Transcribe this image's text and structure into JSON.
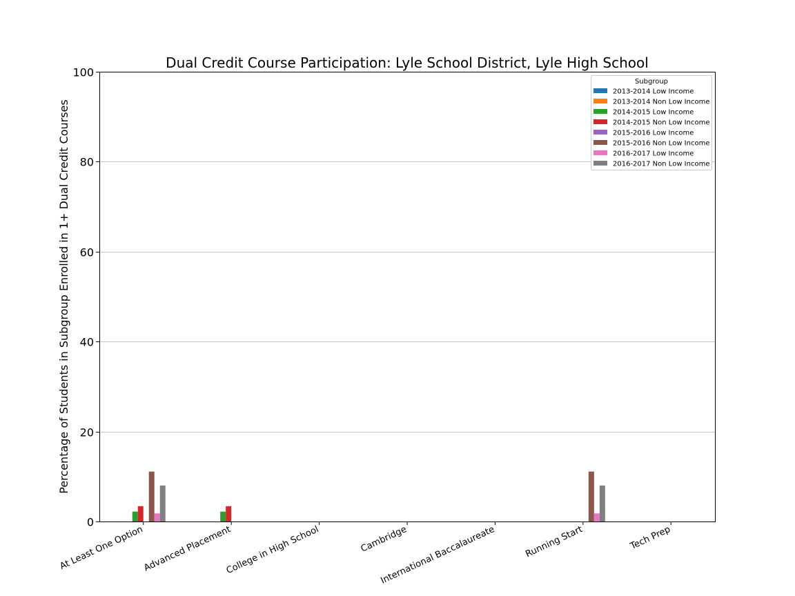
{
  "chart_data": {
    "type": "bar",
    "title": "Dual Credit Course Participation: Lyle School District, Lyle High School",
    "xlabel": "",
    "ylabel": "Percentage of Students in Subgroup Enrolled in 1+ Dual Credit Courses",
    "ylim": [
      0,
      100
    ],
    "yticks": [
      0,
      20,
      40,
      60,
      80,
      100
    ],
    "grid": true,
    "legend_title": "Subgroup",
    "legend_position": "top-right",
    "categories": [
      "At Least One Option",
      "Advanced Placement",
      "College in High School",
      "Cambridge",
      "International Baccalaureate",
      "Running Start",
      "Tech Prep"
    ],
    "series": [
      {
        "name": "2013-2014 Low Income",
        "color": "#1f77b4",
        "values": [
          0,
          0,
          0,
          0,
          0,
          0,
          0
        ]
      },
      {
        "name": "2013-2014 Non Low Income",
        "color": "#ff7f0e",
        "values": [
          0,
          0,
          0,
          0,
          0,
          0,
          0
        ]
      },
      {
        "name": "2014-2015 Low Income",
        "color": "#2ca02c",
        "values": [
          2.2,
          2.2,
          0,
          0,
          0,
          0,
          0
        ]
      },
      {
        "name": "2014-2015 Non Low Income",
        "color": "#d62728",
        "values": [
          3.4,
          3.4,
          0,
          0,
          0,
          0,
          0
        ]
      },
      {
        "name": "2015-2016 Low Income",
        "color": "#9467bd",
        "values": [
          0,
          0,
          0,
          0,
          0,
          0,
          0
        ]
      },
      {
        "name": "2015-2016 Non Low Income",
        "color": "#8c564b",
        "values": [
          11.1,
          0,
          0,
          0,
          0,
          11.1,
          0
        ]
      },
      {
        "name": "2016-2017 Low Income",
        "color": "#e377c2",
        "values": [
          1.8,
          0,
          0,
          0,
          0,
          1.8,
          0
        ]
      },
      {
        "name": "2016-2017 Non Low Income",
        "color": "#7f7f7f",
        "values": [
          8.0,
          0,
          0,
          0,
          0,
          8.0,
          0
        ]
      }
    ]
  }
}
